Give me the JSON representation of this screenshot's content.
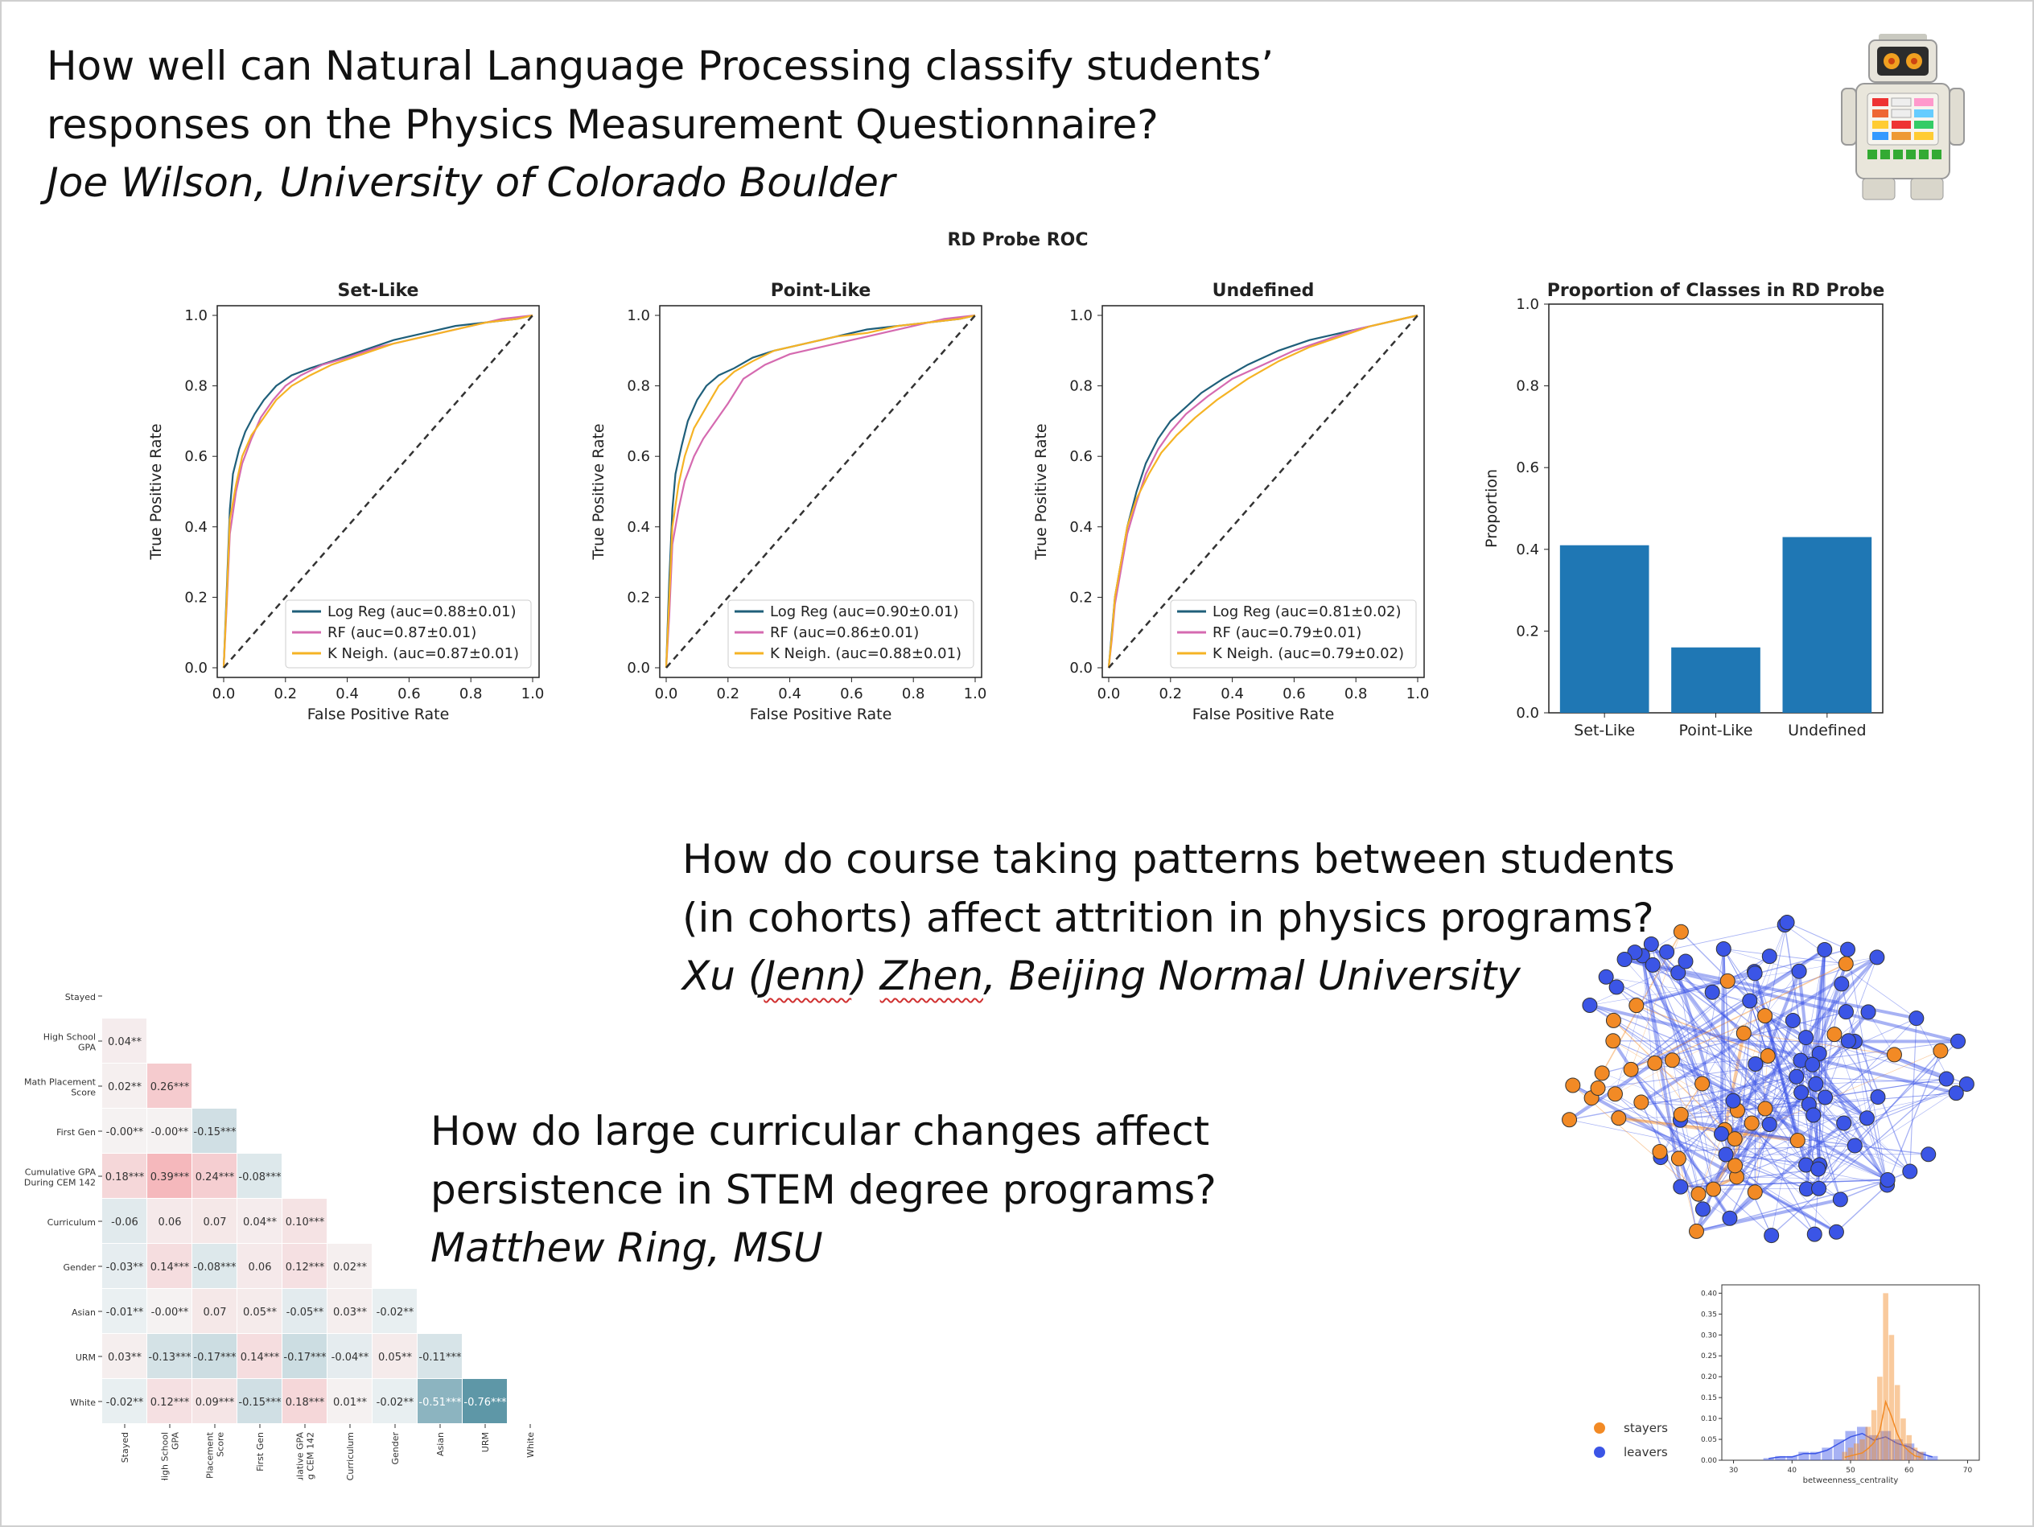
{
  "q1": {
    "line1": "How well can Natural Language Processing classify students’",
    "line2": "responses on the Physics Measurement Questionnaire?",
    "author": "Joe Wilson, University of Colorado Boulder"
  },
  "q2": {
    "line1": "How do course taking patterns between students",
    "line2": "(in cohorts) affect attrition in physics programs?",
    "author_a": "Xu (",
    "author_b": "Jenn",
    "author_c": ") ",
    "author_d": "Zhen",
    "author_e": ", Beijing Normal University"
  },
  "q3": {
    "line1": "How do large curricular changes affect",
    "line2": "persistence in STEM degree programs?",
    "author": "Matthew Ring, MSU"
  },
  "colors": {
    "logreg": "#1f5f7a",
    "rf": "#d56ab0",
    "kn": "#f5b324",
    "bar": "#1f77b4",
    "stayers": "#f28a25",
    "leavers": "#3b55e6"
  },
  "icons": {
    "robot": "robot-toy-icon"
  },
  "chart_data": [
    {
      "type": "line",
      "suptitle": "RD Probe ROC",
      "title": "Set-Like",
      "xlabel": "False Positive Rate",
      "ylabel": "True Positive Rate",
      "xlim": [
        0,
        1
      ],
      "ylim": [
        0,
        1
      ],
      "ticks": [
        "0.0",
        "0.2",
        "0.4",
        "0.6",
        "0.8",
        "1.0"
      ],
      "series": [
        {
          "name": "Log Reg (auc=0.88±0.01)",
          "color": "#1f5f7a",
          "x": [
            0,
            0.01,
            0.02,
            0.03,
            0.05,
            0.07,
            0.1,
            0.13,
            0.17,
            0.22,
            0.28,
            0.35,
            0.45,
            0.55,
            0.65,
            0.75,
            0.85,
            0.95,
            1.0
          ],
          "y": [
            0,
            0.22,
            0.45,
            0.55,
            0.62,
            0.67,
            0.72,
            0.76,
            0.8,
            0.83,
            0.85,
            0.87,
            0.9,
            0.93,
            0.95,
            0.97,
            0.98,
            0.99,
            1.0
          ]
        },
        {
          "name": "RF        (auc=0.87±0.01)",
          "color": "#d56ab0",
          "x": [
            0,
            0.01,
            0.02,
            0.04,
            0.06,
            0.09,
            0.12,
            0.16,
            0.2,
            0.25,
            0.32,
            0.4,
            0.5,
            0.6,
            0.7,
            0.8,
            0.9,
            1.0
          ],
          "y": [
            0,
            0.18,
            0.38,
            0.5,
            0.58,
            0.65,
            0.71,
            0.76,
            0.8,
            0.83,
            0.86,
            0.88,
            0.91,
            0.93,
            0.95,
            0.97,
            0.99,
            1.0
          ]
        },
        {
          "name": "K Neigh. (auc=0.87±0.01)",
          "color": "#f5b324",
          "x": [
            0,
            0.01,
            0.02,
            0.04,
            0.06,
            0.09,
            0.13,
            0.17,
            0.22,
            0.28,
            0.35,
            0.45,
            0.55,
            0.65,
            0.75,
            0.85,
            0.95,
            1.0
          ],
          "y": [
            0,
            0.2,
            0.42,
            0.52,
            0.6,
            0.66,
            0.71,
            0.76,
            0.8,
            0.83,
            0.86,
            0.89,
            0.92,
            0.94,
            0.96,
            0.98,
            0.99,
            1.0
          ]
        },
        {
          "name": "",
          "color": "#333333",
          "dashed": true,
          "x": [
            0,
            1
          ],
          "y": [
            0,
            1
          ]
        }
      ]
    },
    {
      "type": "line",
      "title": "Point-Like",
      "xlabel": "False Positive Rate",
      "ylabel": "True Positive Rate",
      "xlim": [
        0,
        1
      ],
      "ylim": [
        0,
        1
      ],
      "ticks": [
        "0.0",
        "0.2",
        "0.4",
        "0.6",
        "0.8",
        "1.0"
      ],
      "series": [
        {
          "name": "Log Reg (auc=0.90±0.01)",
          "color": "#1f5f7a",
          "x": [
            0,
            0.01,
            0.02,
            0.03,
            0.05,
            0.07,
            0.1,
            0.13,
            0.17,
            0.22,
            0.28,
            0.35,
            0.45,
            0.55,
            0.65,
            0.75,
            0.85,
            0.95,
            1.0
          ],
          "y": [
            0,
            0.25,
            0.45,
            0.55,
            0.63,
            0.7,
            0.76,
            0.8,
            0.83,
            0.85,
            0.88,
            0.9,
            0.92,
            0.94,
            0.96,
            0.97,
            0.98,
            0.99,
            1.0
          ]
        },
        {
          "name": "RF        (auc=0.86±0.01)",
          "color": "#d56ab0",
          "x": [
            0,
            0.01,
            0.02,
            0.04,
            0.06,
            0.09,
            0.12,
            0.16,
            0.2,
            0.25,
            0.32,
            0.4,
            0.5,
            0.6,
            0.7,
            0.8,
            0.9,
            1.0
          ],
          "y": [
            0,
            0.15,
            0.35,
            0.45,
            0.53,
            0.6,
            0.65,
            0.7,
            0.75,
            0.82,
            0.86,
            0.89,
            0.91,
            0.93,
            0.95,
            0.97,
            0.99,
            1.0
          ]
        },
        {
          "name": "K Neigh. (auc=0.88±0.01)",
          "color": "#f5b324",
          "x": [
            0,
            0.01,
            0.02,
            0.04,
            0.06,
            0.09,
            0.13,
            0.17,
            0.22,
            0.28,
            0.35,
            0.45,
            0.55,
            0.65,
            0.75,
            0.85,
            0.95,
            1.0
          ],
          "y": [
            0,
            0.2,
            0.4,
            0.52,
            0.6,
            0.68,
            0.74,
            0.8,
            0.84,
            0.87,
            0.9,
            0.92,
            0.94,
            0.95,
            0.97,
            0.98,
            0.99,
            1.0
          ]
        },
        {
          "name": "",
          "color": "#333333",
          "dashed": true,
          "x": [
            0,
            1
          ],
          "y": [
            0,
            1
          ]
        }
      ]
    },
    {
      "type": "line",
      "title": "Undefined",
      "xlabel": "False Positive Rate",
      "ylabel": "True Positive Rate",
      "xlim": [
        0,
        1
      ],
      "ylim": [
        0,
        1
      ],
      "ticks": [
        "0.0",
        "0.2",
        "0.4",
        "0.6",
        "0.8",
        "1.0"
      ],
      "series": [
        {
          "name": "Log Reg (auc=0.81±0.02)",
          "color": "#1f5f7a",
          "x": [
            0,
            0.01,
            0.02,
            0.04,
            0.06,
            0.09,
            0.12,
            0.16,
            0.2,
            0.25,
            0.3,
            0.37,
            0.45,
            0.55,
            0.65,
            0.75,
            0.85,
            0.95,
            1.0
          ],
          "y": [
            0,
            0.1,
            0.2,
            0.3,
            0.4,
            0.5,
            0.58,
            0.65,
            0.7,
            0.74,
            0.78,
            0.82,
            0.86,
            0.9,
            0.93,
            0.95,
            0.97,
            0.99,
            1.0
          ]
        },
        {
          "name": "RF        (auc=0.79±0.01)",
          "color": "#d56ab0",
          "x": [
            0,
            0.01,
            0.02,
            0.04,
            0.06,
            0.09,
            0.12,
            0.16,
            0.2,
            0.25,
            0.32,
            0.4,
            0.5,
            0.6,
            0.7,
            0.8,
            0.9,
            1.0
          ],
          "y": [
            0,
            0.08,
            0.18,
            0.28,
            0.38,
            0.47,
            0.55,
            0.62,
            0.67,
            0.72,
            0.77,
            0.82,
            0.86,
            0.9,
            0.93,
            0.96,
            0.98,
            1.0
          ]
        },
        {
          "name": "K Neigh. (auc=0.79±0.02)",
          "color": "#f5b324",
          "x": [
            0,
            0.01,
            0.02,
            0.04,
            0.06,
            0.09,
            0.13,
            0.17,
            0.22,
            0.28,
            0.35,
            0.45,
            0.55,
            0.65,
            0.75,
            0.85,
            0.95,
            1.0
          ],
          "y": [
            0,
            0.09,
            0.2,
            0.3,
            0.4,
            0.48,
            0.55,
            0.61,
            0.66,
            0.71,
            0.76,
            0.82,
            0.87,
            0.91,
            0.94,
            0.97,
            0.99,
            1.0
          ]
        },
        {
          "name": "",
          "color": "#333333",
          "dashed": true,
          "x": [
            0,
            1
          ],
          "y": [
            0,
            1
          ]
        }
      ]
    },
    {
      "type": "bar",
      "title": "Proportion of Classes in RD Probe",
      "ylabel": "Proportion",
      "categories": [
        "Set-Like",
        "Point-Like",
        "Undefined"
      ],
      "values": [
        0.41,
        0.16,
        0.43
      ],
      "ylim": [
        0,
        1
      ],
      "yticks": [
        "0.0",
        "0.2",
        "0.4",
        "0.6",
        "0.8",
        "1.0"
      ]
    },
    {
      "type": "heatmap",
      "labels": [
        "Stayed",
        "High School GPA",
        "Math Placement Score",
        "First Gen",
        "Cumulative GPA During CEM 142",
        "Curriculum",
        "Gender",
        "Asian",
        "URM",
        "White"
      ],
      "cells": [
        [],
        [
          "0.04**"
        ],
        [
          "0.02**",
          "0.26***"
        ],
        [
          "-0.00**",
          "-0.00**",
          "-0.15***"
        ],
        [
          "0.18***",
          "0.39***",
          "0.24***",
          "-0.08***"
        ],
        [
          "-0.06",
          "0.06",
          "0.07",
          "0.04**",
          "0.10***"
        ],
        [
          "-0.03**",
          "0.14***",
          "-0.08***",
          "0.06",
          "0.12***",
          "0.02**"
        ],
        [
          "-0.01**",
          "-0.00**",
          "0.07",
          "0.05**",
          "-0.05**",
          "0.03**",
          "-0.02**"
        ],
        [
          "0.03**",
          "-0.13***",
          "-0.17***",
          "0.14***",
          "-0.17***",
          "-0.04**",
          "0.05**",
          "-0.11***"
        ],
        [
          "-0.02**",
          "0.12***",
          "0.09***",
          "-0.15***",
          "0.18***",
          "0.01**",
          "-0.02**",
          "-0.51***",
          "-0.76***"
        ]
      ],
      "values": [
        [],
        [
          0.04
        ],
        [
          0.02,
          0.26
        ],
        [
          0.0,
          0.0,
          -0.15
        ],
        [
          0.18,
          0.39,
          0.24,
          -0.08
        ],
        [
          -0.06,
          0.06,
          0.07,
          0.04,
          0.1
        ],
        [
          -0.03,
          0.14,
          -0.08,
          0.06,
          0.12,
          0.02
        ],
        [
          -0.01,
          0.0,
          0.07,
          0.05,
          -0.05,
          0.03,
          -0.02
        ],
        [
          0.03,
          -0.13,
          -0.17,
          0.14,
          -0.17,
          -0.04,
          0.05,
          -0.11
        ],
        [
          -0.02,
          0.12,
          0.09,
          -0.15,
          0.18,
          0.01,
          -0.02,
          -0.51,
          -0.76
        ]
      ]
    },
    {
      "type": "bar",
      "xlabel": "betweenness_centrality",
      "xticks": [
        "30",
        "40",
        "50",
        "60",
        "70"
      ],
      "yticks": [
        "0.00",
        "0.05",
        "0.10",
        "0.15",
        "0.20",
        "0.25",
        "0.30",
        "0.35",
        "0.40"
      ],
      "xlim": [
        28,
        72
      ],
      "ylim": [
        0,
        0.42
      ],
      "series": [
        {
          "name": "stayers",
          "color": "#f28a25",
          "x": [
            49,
            50,
            51,
            52,
            53,
            54,
            55,
            56,
            57,
            58,
            59,
            60,
            61,
            62
          ],
          "values": [
            0.02,
            0.03,
            0.04,
            0.05,
            0.08,
            0.12,
            0.2,
            0.4,
            0.3,
            0.18,
            0.1,
            0.06,
            0.03,
            0.02
          ]
        },
        {
          "name": "leavers",
          "color": "#3b55e6",
          "x": [
            36,
            38,
            40,
            42,
            44,
            46,
            48,
            50,
            52,
            54,
            56,
            58,
            60,
            62,
            64
          ],
          "values": [
            0.005,
            0.01,
            0.01,
            0.02,
            0.02,
            0.03,
            0.05,
            0.07,
            0.08,
            0.06,
            0.07,
            0.05,
            0.04,
            0.02,
            0.01
          ]
        }
      ]
    }
  ]
}
